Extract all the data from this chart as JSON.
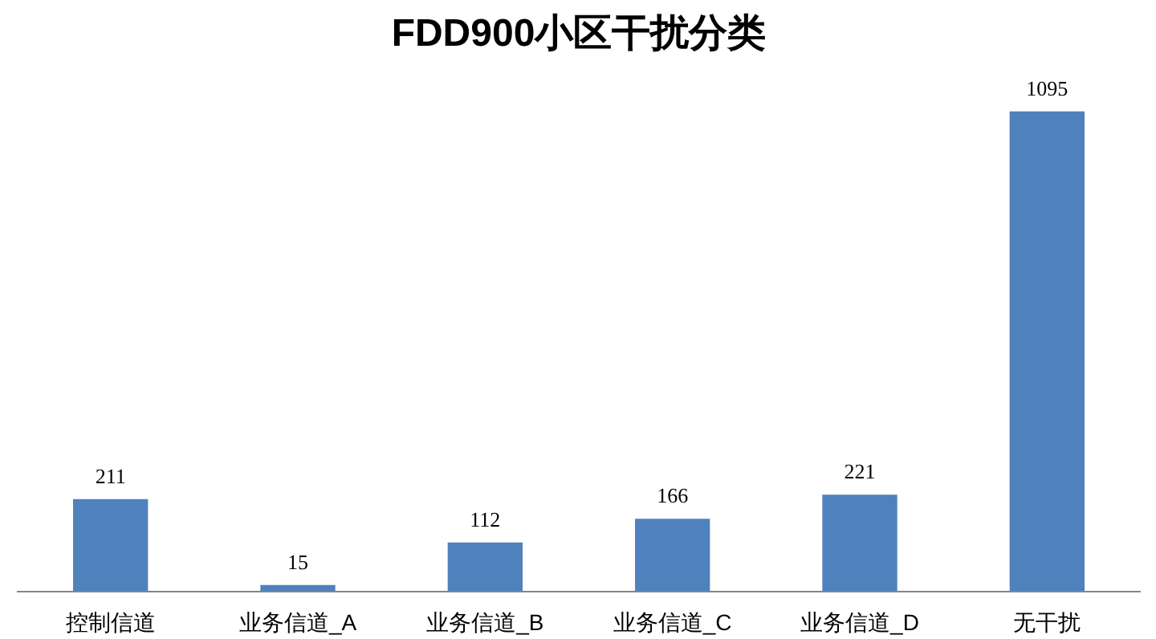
{
  "chart_data": {
    "type": "bar",
    "title": "FDD900小区干扰分类",
    "categories": [
      "控制信道",
      "业务信道_A",
      "业务信道_B",
      "业务信道_C",
      "业务信道_D",
      "无干扰"
    ],
    "values": [
      211,
      15,
      112,
      166,
      221,
      1095
    ],
    "color": "#4f81bd",
    "data_labels": true
  }
}
